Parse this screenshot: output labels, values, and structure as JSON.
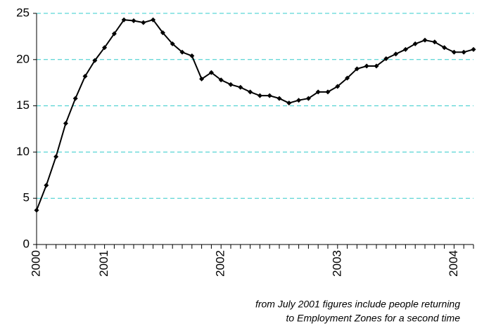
{
  "chart_data": {
    "type": "line",
    "categories": [
      "2000",
      null,
      null,
      null,
      null,
      null,
      null,
      "2001",
      null,
      null,
      null,
      null,
      null,
      null,
      null,
      null,
      null,
      null,
      null,
      "2002",
      null,
      null,
      null,
      null,
      null,
      null,
      null,
      null,
      null,
      null,
      null,
      "2003",
      null,
      null,
      null,
      null,
      null,
      null,
      null,
      null,
      null,
      null,
      null,
      "2004",
      null,
      null
    ],
    "series": [
      {
        "color": "#000000",
        "values": [
          3.7,
          6.4,
          9.5,
          13.1,
          15.8,
          18.2,
          19.9,
          21.3,
          22.8,
          24.3,
          24.2,
          24.0,
          24.3,
          22.9,
          21.7,
          20.8,
          20.4,
          17.9,
          18.6,
          17.8,
          17.3,
          17.0,
          16.5,
          16.1,
          16.1,
          15.8,
          15.3,
          15.6,
          15.8,
          16.5,
          16.5,
          17.1,
          18.0,
          19.0,
          19.3,
          19.3,
          20.1,
          20.6,
          21.1,
          21.7,
          22.1,
          21.9,
          21.3,
          20.8,
          20.8,
          21.1
        ]
      }
    ],
    "ylim": [
      0,
      25
    ],
    "yticks": [
      0,
      5,
      10,
      15,
      20,
      25
    ],
    "grid": true,
    "grid_color": "#33cccc",
    "annotation": [
      "from July 2001 figures include people returning",
      "to Employment Zones for a second time"
    ]
  }
}
